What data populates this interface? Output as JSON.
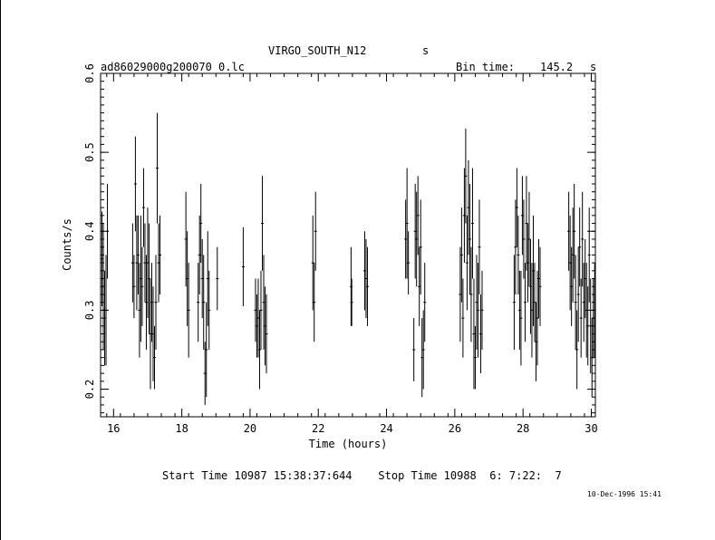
{
  "header": {
    "object": "VIRGO_SOUTH_N12",
    "object_unit": "s",
    "filename": "ad86029000g200070_0.lc",
    "bin_label": "Bin time:",
    "bin_value": "145.2",
    "bin_unit": "s"
  },
  "footer": {
    "times": "Start Time 10987 15:38:37:644    Stop Time 10988  6: 7:22:  7",
    "stamp": "10-Dec-1996 15:41"
  },
  "chart_data": {
    "type": "scatter",
    "xlabel": "Time (hours)",
    "ylabel": "Counts/s",
    "xlim": [
      15.62,
      30.12
    ],
    "ylim": [
      0.165,
      0.6
    ],
    "xticks": [
      16,
      18,
      20,
      22,
      24,
      26,
      28,
      30
    ],
    "yticks": [
      0.2,
      0.3,
      0.4,
      0.5,
      0.6
    ],
    "points": [
      [
        15.66,
        0.365,
        0.06
      ],
      [
        15.7,
        0.33,
        0.08
      ],
      [
        15.74,
        0.29,
        0.06
      ],
      [
        15.78,
        0.3,
        0.07
      ],
      [
        15.82,
        0.4,
        0.06
      ],
      [
        16.56,
        0.36,
        0.05
      ],
      [
        16.6,
        0.33,
        0.04
      ],
      [
        16.64,
        0.46,
        0.06
      ],
      [
        16.68,
        0.36,
        0.06
      ],
      [
        16.72,
        0.37,
        0.05
      ],
      [
        16.76,
        0.3,
        0.06
      ],
      [
        16.8,
        0.34,
        0.08
      ],
      [
        16.84,
        0.33,
        0.05
      ],
      [
        16.88,
        0.43,
        0.05
      ],
      [
        16.92,
        0.36,
        0.05
      ],
      [
        16.96,
        0.31,
        0.06
      ],
      [
        17.0,
        0.36,
        0.07
      ],
      [
        17.04,
        0.34,
        0.07
      ],
      [
        17.08,
        0.27,
        0.07
      ],
      [
        17.12,
        0.31,
        0.05
      ],
      [
        17.16,
        0.27,
        0.06
      ],
      [
        17.2,
        0.24,
        0.04
      ],
      [
        17.24,
        0.31,
        0.06
      ],
      [
        17.28,
        0.48,
        0.07
      ],
      [
        17.32,
        0.36,
        0.05
      ],
      [
        17.36,
        0.37,
        0.05
      ],
      [
        18.12,
        0.39,
        0.06
      ],
      [
        18.16,
        0.34,
        0.06
      ],
      [
        18.2,
        0.3,
        0.06
      ],
      [
        18.48,
        0.31,
        0.05
      ],
      [
        18.52,
        0.37,
        0.05
      ],
      [
        18.56,
        0.41,
        0.05
      ],
      [
        18.6,
        0.34,
        0.05
      ],
      [
        18.64,
        0.31,
        0.06
      ],
      [
        18.68,
        0.22,
        0.04
      ],
      [
        18.72,
        0.25,
        0.06
      ],
      [
        18.76,
        0.34,
        0.06
      ],
      [
        18.8,
        0.3,
        0.05
      ],
      [
        19.04,
        0.34,
        0.04
      ],
      [
        19.8,
        0.355,
        0.05
      ],
      [
        20.16,
        0.3,
        0.04
      ],
      [
        20.2,
        0.28,
        0.04
      ],
      [
        20.24,
        0.29,
        0.05
      ],
      [
        20.28,
        0.25,
        0.05
      ],
      [
        20.32,
        0.3,
        0.05
      ],
      [
        20.36,
        0.41,
        0.06
      ],
      [
        20.4,
        0.31,
        0.06
      ],
      [
        20.44,
        0.28,
        0.05
      ],
      [
        20.48,
        0.27,
        0.05
      ],
      [
        21.84,
        0.36,
        0.06
      ],
      [
        21.88,
        0.31,
        0.05
      ],
      [
        21.92,
        0.4,
        0.05
      ],
      [
        22.96,
        0.33,
        0.05
      ],
      [
        22.98,
        0.31,
        0.03
      ],
      [
        23.36,
        0.35,
        0.05
      ],
      [
        23.4,
        0.34,
        0.05
      ],
      [
        23.44,
        0.33,
        0.05
      ],
      [
        24.56,
        0.39,
        0.05
      ],
      [
        24.6,
        0.41,
        0.07
      ],
      [
        24.64,
        0.36,
        0.04
      ],
      [
        24.8,
        0.25,
        0.04
      ],
      [
        24.84,
        0.4,
        0.06
      ],
      [
        24.88,
        0.39,
        0.06
      ],
      [
        24.92,
        0.42,
        0.05
      ],
      [
        24.96,
        0.33,
        0.05
      ],
      [
        25.0,
        0.38,
        0.06
      ],
      [
        25.04,
        0.24,
        0.05
      ],
      [
        25.08,
        0.25,
        0.05
      ],
      [
        25.12,
        0.31,
        0.05
      ],
      [
        26.16,
        0.32,
        0.06
      ],
      [
        26.2,
        0.37,
        0.06
      ],
      [
        26.24,
        0.29,
        0.05
      ],
      [
        26.28,
        0.42,
        0.06
      ],
      [
        26.32,
        0.47,
        0.06
      ],
      [
        26.36,
        0.36,
        0.06
      ],
      [
        26.4,
        0.43,
        0.06
      ],
      [
        26.44,
        0.39,
        0.07
      ],
      [
        26.48,
        0.32,
        0.06
      ],
      [
        26.52,
        0.41,
        0.07
      ],
      [
        26.56,
        0.27,
        0.07
      ],
      [
        26.6,
        0.24,
        0.04
      ],
      [
        26.64,
        0.31,
        0.06
      ],
      [
        26.68,
        0.3,
        0.06
      ],
      [
        26.72,
        0.38,
        0.06
      ],
      [
        26.76,
        0.27,
        0.05
      ],
      [
        26.8,
        0.3,
        0.05
      ],
      [
        27.74,
        0.31,
        0.06
      ],
      [
        27.78,
        0.38,
        0.06
      ],
      [
        27.82,
        0.43,
        0.05
      ],
      [
        27.86,
        0.37,
        0.05
      ],
      [
        27.9,
        0.3,
        0.05
      ],
      [
        27.94,
        0.29,
        0.06
      ],
      [
        27.98,
        0.42,
        0.05
      ],
      [
        28.02,
        0.39,
        0.05
      ],
      [
        28.06,
        0.31,
        0.05
      ],
      [
        28.1,
        0.41,
        0.06
      ],
      [
        28.14,
        0.36,
        0.05
      ],
      [
        28.18,
        0.39,
        0.06
      ],
      [
        28.22,
        0.33,
        0.06
      ],
      [
        28.26,
        0.3,
        0.06
      ],
      [
        28.3,
        0.35,
        0.07
      ],
      [
        28.34,
        0.31,
        0.05
      ],
      [
        28.38,
        0.26,
        0.05
      ],
      [
        28.42,
        0.29,
        0.06
      ],
      [
        28.46,
        0.34,
        0.05
      ],
      [
        28.5,
        0.33,
        0.05
      ],
      [
        29.34,
        0.4,
        0.05
      ],
      [
        29.38,
        0.36,
        0.06
      ],
      [
        29.42,
        0.33,
        0.05
      ],
      [
        29.46,
        0.37,
        0.06
      ],
      [
        29.5,
        0.4,
        0.06
      ],
      [
        29.54,
        0.31,
        0.06
      ],
      [
        29.58,
        0.25,
        0.05
      ],
      [
        29.62,
        0.32,
        0.06
      ],
      [
        29.66,
        0.38,
        0.05
      ],
      [
        29.7,
        0.29,
        0.05
      ],
      [
        29.74,
        0.39,
        0.06
      ],
      [
        29.78,
        0.31,
        0.05
      ],
      [
        29.82,
        0.34,
        0.05
      ],
      [
        29.86,
        0.3,
        0.06
      ],
      [
        29.9,
        0.28,
        0.05
      ],
      [
        29.94,
        0.37,
        0.06
      ],
      [
        29.98,
        0.28,
        0.06
      ],
      [
        30.02,
        0.24,
        0.05
      ],
      [
        30.06,
        0.29,
        0.05
      ],
      [
        30.1,
        0.3,
        0.06
      ]
    ]
  }
}
